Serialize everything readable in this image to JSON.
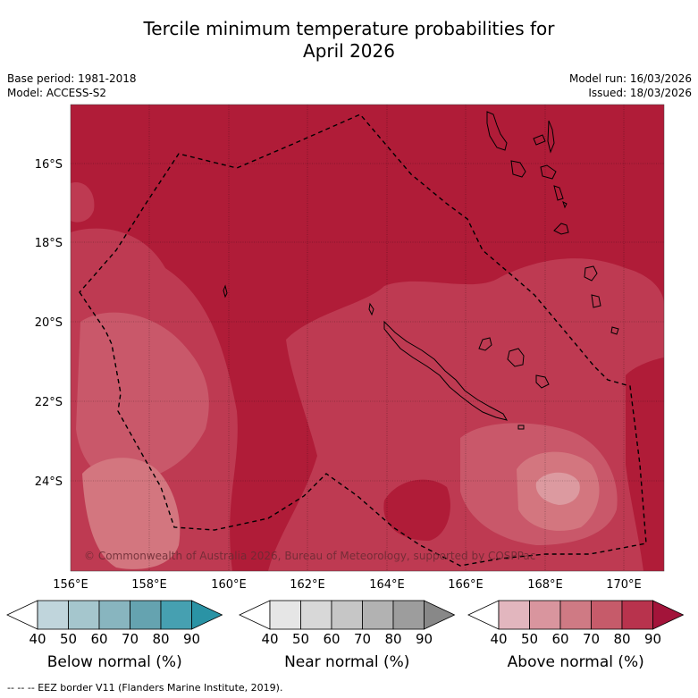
{
  "title": {
    "line1": "Tercile minimum temperature probabilities for",
    "line2": "April 2026"
  },
  "header": {
    "base_period": "Base period: 1981-2018",
    "model": "Model: ACCESS-S2",
    "model_run": "Model run: 16/03/2026",
    "issued": "Issued: 18/03/2026"
  },
  "map": {
    "lat_labels": [
      "16°S",
      "18°S",
      "20°S",
      "22°S",
      "24°S"
    ],
    "lon_labels": [
      "156°E",
      "158°E",
      "160°E",
      "162°E",
      "164°E",
      "166°E",
      "168°E",
      "170°E"
    ],
    "copyright": "© Commonwealth of Australia 2026, Bureau of Meteorology, supported by COSPPac",
    "colors": {
      "above_90": "#b01c38",
      "above_80": "#be3a52",
      "above_70": "#c9586a",
      "above_60": "#d3767f"
    }
  },
  "colorbars": [
    {
      "label": "Below normal (%)",
      "ticks": [
        "40",
        "50",
        "60",
        "70",
        "80",
        "90"
      ],
      "colors": [
        "#ffffff",
        "#c0d5dc",
        "#a5c6cd",
        "#88b5bf",
        "#65a3b0",
        "#46a0b1",
        "#2a93a5"
      ]
    },
    {
      "label": "Near normal (%)",
      "ticks": [
        "40",
        "50",
        "60",
        "70",
        "80",
        "90"
      ],
      "colors": [
        "#ffffff",
        "#e6e6e6",
        "#d8d8d8",
        "#c6c6c6",
        "#b2b2b2",
        "#9d9d9d",
        "#888888"
      ]
    },
    {
      "label": "Above normal (%)",
      "ticks": [
        "40",
        "50",
        "60",
        "70",
        "80",
        "90"
      ],
      "colors": [
        "#ffffff",
        "#e2b6be",
        "#d9959e",
        "#cf7a84",
        "#c65b6a",
        "#b8334d",
        "#a3143a"
      ]
    }
  ],
  "footer": {
    "legend": "--  --  -- EEZ border V11 (Flanders Marine Institute, 2019)."
  }
}
